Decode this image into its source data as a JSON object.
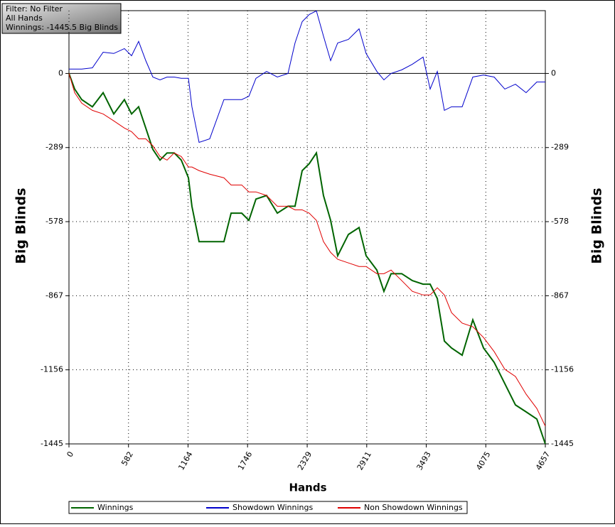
{
  "chart_data": {
    "type": "line",
    "annotations": [
      "Filter: No Filter",
      "All Hands",
      "Winnings: -1445.5 Big Blinds"
    ],
    "x_label": "Hands",
    "y_label": "Big Blinds",
    "xlim": [
      0,
      4657
    ],
    "ylim": [
      -1445,
      245
    ],
    "xticks": [
      0,
      582,
      1164,
      1746,
      2329,
      2911,
      3493,
      4075,
      4657
    ],
    "yticks": [
      0,
      -289,
      -578,
      -867,
      -1156,
      -1445
    ],
    "grid": true,
    "legend": "bottom",
    "x": [
      0,
      56,
      125,
      229,
      334,
      438,
      542,
      612,
      681,
      751,
      820,
      890,
      959,
      1029,
      1098,
      1168,
      1202,
      1272,
      1376,
      1515,
      1585,
      1689,
      1759,
      1828,
      1932,
      2037,
      2141,
      2210,
      2280,
      2349,
      2419,
      2488,
      2558,
      2627,
      2732,
      2836,
      2905,
      3010,
      3079,
      3149,
      3253,
      3357,
      3462,
      3531,
      3601,
      3670,
      3740,
      3844,
      3948,
      4053,
      4157,
      4261,
      4365,
      4469,
      4574,
      4657
    ],
    "series": [
      {
        "name": "Winnings",
        "color": "#006400",
        "values": [
          0,
          -61,
          -102,
          -130,
          -75,
          -158,
          -102,
          -158,
          -130,
          -213,
          -296,
          -338,
          -310,
          -310,
          -338,
          -407,
          -518,
          -656,
          -656,
          -656,
          -545,
          -545,
          -573,
          -490,
          -476,
          -545,
          -518,
          -518,
          -379,
          -352,
          -310,
          -476,
          -573,
          -711,
          -628,
          -601,
          -711,
          -767,
          -850,
          -781,
          -781,
          -808,
          -822,
          -822,
          -878,
          -1044,
          -1071,
          -1099,
          -961,
          -1071,
          -1127,
          -1210,
          -1293,
          -1320,
          -1348,
          -1445.5
        ]
      },
      {
        "name": "Showdown Winnings",
        "color": "#0000cc",
        "values": [
          17,
          17,
          17,
          22,
          83,
          78,
          97,
          69,
          125,
          50,
          -14,
          -25,
          -14,
          -14,
          -19,
          -19,
          -130,
          -269,
          -255,
          -102,
          -102,
          -102,
          -89,
          -19,
          8,
          -14,
          0,
          119,
          202,
          230,
          244,
          146,
          50,
          119,
          133,
          174,
          78,
          8,
          -25,
          0,
          14,
          36,
          64,
          -61,
          8,
          -144,
          -130,
          -130,
          -14,
          -6,
          -14,
          -61,
          -42,
          -75,
          -33,
          -33
        ]
      },
      {
        "name": "Non Showdown Winnings",
        "color": "#e00000",
        "values": [
          0,
          -75,
          -116,
          -144,
          -158,
          -185,
          -213,
          -227,
          -255,
          -255,
          -282,
          -324,
          -338,
          -310,
          -324,
          -365,
          -365,
          -379,
          -393,
          -407,
          -435,
          -435,
          -462,
          -462,
          -476,
          -518,
          -518,
          -532,
          -532,
          -545,
          -573,
          -656,
          -698,
          -725,
          -739,
          -753,
          -753,
          -781,
          -781,
          -767,
          -808,
          -850,
          -864,
          -864,
          -836,
          -864,
          -933,
          -974,
          -988,
          -1030,
          -1085,
          -1154,
          -1182,
          -1251,
          -1307,
          -1376
        ]
      }
    ]
  }
}
